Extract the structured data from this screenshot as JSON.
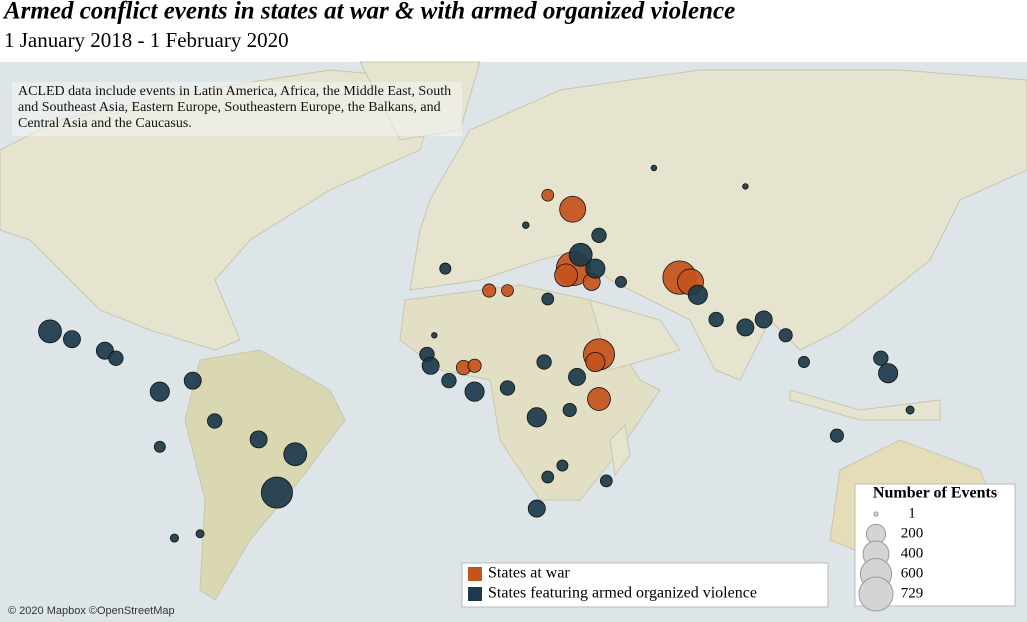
{
  "chart_data": {
    "type": "bubble_map",
    "title": "Armed conflict events in states at war & with armed organized violence",
    "subtitle": "1 January 2018 - 1 February 2020",
    "note": "ACLED data include events in Latin America, Africa, the Middle East, South and Southeast Asia, Eastern Europe, Southeastern Europe, the Balkans, and Central Asia and the Caucasus.",
    "attribution": "© 2020 Mapbox ©OpenStreetMap",
    "size_legend_title": "Number of Events",
    "size_legend": [
      1,
      200,
      400,
      600,
      729
    ],
    "series": [
      {
        "name": "States at war",
        "color": "#c4531c",
        "lon": [
          37.8,
          31,
          38,
          43,
          15,
          20,
          8,
          45,
          44,
          45,
          67,
          70,
          36,
          11
        ],
        "lat": [
          48,
          50.5,
          36,
          33,
          31,
          31,
          11.5,
          15,
          13,
          3,
          34,
          33,
          34.5,
          12
        ],
        "events": [
          400,
          60,
          729,
          150,
          80,
          60,
          100,
          600,
          200,
          300,
          700,
          400,
          300,
          80
        ]
      },
      {
        "name": "States featuring armed organized violence",
        "color": "#1c3a4a",
        "lon": [
          -105,
          -99,
          -90,
          -87,
          -75,
          -66,
          -43,
          -38,
          -48,
          -60,
          -75,
          -64,
          -71,
          124,
          122,
          77,
          85,
          72,
          90,
          96,
          110,
          101,
          40,
          51,
          45,
          44,
          31,
          3,
          -2,
          -1,
          4,
          11,
          20,
          28,
          30,
          39,
          37,
          31,
          28,
          35,
          47,
          60,
          85,
          130,
          0,
          25
        ],
        "lat": [
          21,
          19,
          16,
          14,
          5,
          8,
          -22,
          -12,
          -8,
          -3,
          -10,
          -32,
          -33,
          10,
          14,
          24,
          22,
          30,
          24,
          20,
          -7,
          13,
          39,
          33,
          43,
          36,
          29,
          36,
          15,
          12,
          8,
          5,
          6,
          -2,
          13,
          9,
          0,
          -18,
          -26,
          -15,
          -19,
          55,
          52,
          0,
          20,
          45
        ],
        "events": [
          300,
          150,
          150,
          100,
          200,
          150,
          600,
          300,
          150,
          100,
          50,
          20,
          20,
          200,
          100,
          100,
          150,
          200,
          150,
          80,
          80,
          50,
          300,
          50,
          100,
          200,
          60,
          50,
          100,
          150,
          100,
          200,
          100,
          200,
          100,
          150,
          80,
          60,
          150,
          50,
          60,
          5,
          5,
          20,
          5,
          10
        ]
      }
    ]
  }
}
